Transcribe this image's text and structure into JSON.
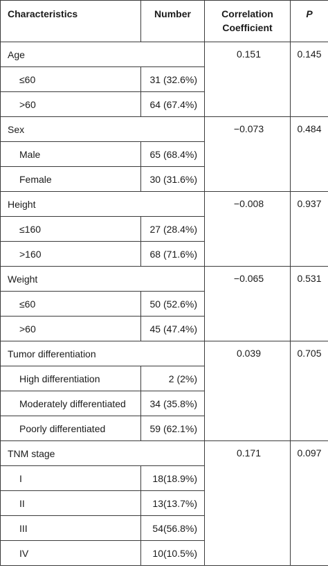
{
  "headers": {
    "characteristics": "Characteristics",
    "number": "Number",
    "correlation_line1": "Correlation",
    "correlation_line2": "Coefficient",
    "p": "P"
  },
  "groups": [
    {
      "label": "Age",
      "correlation": "0.151",
      "p": "0.145",
      "rows": [
        {
          "label": "≤60",
          "number": "31 (32.6%)"
        },
        {
          "label": ">60",
          "number": "64 (67.4%)"
        }
      ]
    },
    {
      "label": "Sex",
      "correlation": "−0.073",
      "p": "0.484",
      "rows": [
        {
          "label": "Male",
          "number": "65 (68.4%)"
        },
        {
          "label": "Female",
          "number": "30 (31.6%)"
        }
      ]
    },
    {
      "label": "Height",
      "correlation": "−0.008",
      "p": "0.937",
      "rows": [
        {
          "label": "≤160",
          "number": "27 (28.4%)"
        },
        {
          "label": ">160",
          "number": "68 (71.6%)"
        }
      ]
    },
    {
      "label": "Weight",
      "correlation": "−0.065",
      "p": "0.531",
      "rows": [
        {
          "label": "≤60",
          "number": "50 (52.6%)"
        },
        {
          "label": ">60",
          "number": "45 (47.4%)"
        }
      ]
    },
    {
      "label": "Tumor differentiation",
      "correlation": "0.039",
      "p": "0.705",
      "rows": [
        {
          "label": "High differentiation",
          "number": "2 (2%)"
        },
        {
          "label": "Moderately differentiated",
          "number": "34 (35.8%)"
        },
        {
          "label": "Poorly differentiated",
          "number": "59 (62.1%)"
        }
      ]
    },
    {
      "label": "TNM stage",
      "correlation": "0.171",
      "p": "0.097",
      "rows": [
        {
          "label": "I",
          "number": "18(18.9%)"
        },
        {
          "label": "II",
          "number": "13(13.7%)"
        },
        {
          "label": "III",
          "number": "54(56.8%)"
        },
        {
          "label": "IV",
          "number": "10(10.5%)"
        }
      ]
    }
  ]
}
